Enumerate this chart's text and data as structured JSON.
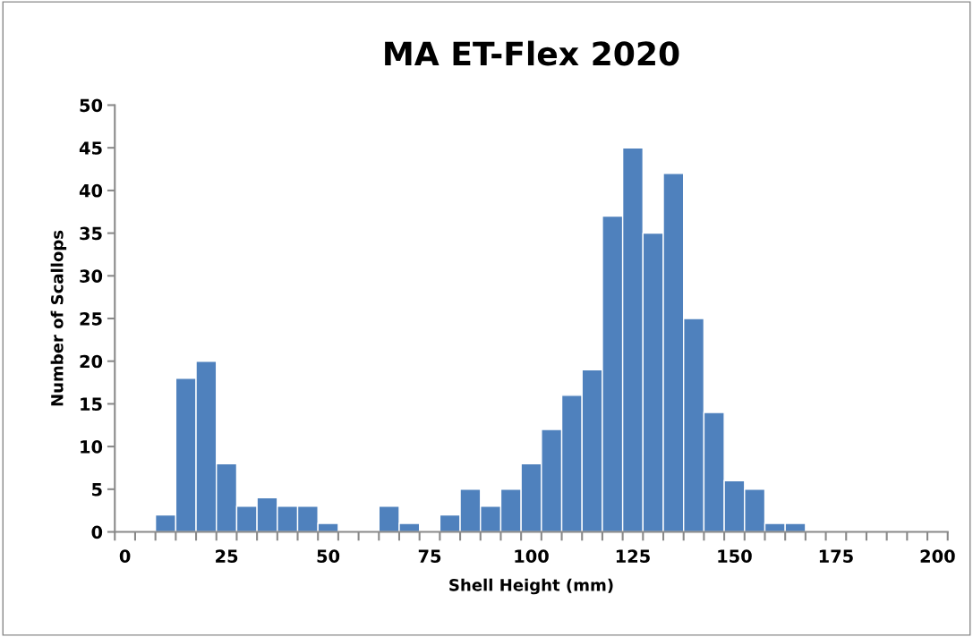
{
  "chart_data": {
    "type": "bar",
    "title": "MA ET-Flex 2020",
    "xlabel": "Shell Height (mm)",
    "ylabel": "Number of Scallops",
    "categories": [
      "0",
      null,
      null,
      null,
      null,
      "25",
      null,
      null,
      null,
      null,
      "50",
      null,
      null,
      null,
      null,
      "75",
      null,
      null,
      null,
      null,
      "100",
      null,
      null,
      null,
      null,
      "125",
      null,
      null,
      null,
      null,
      "150",
      null,
      null,
      null,
      null,
      "175",
      null,
      null,
      null,
      null,
      "200"
    ],
    "values": [
      0,
      0,
      2,
      18,
      20,
      8,
      3,
      4,
      3,
      3,
      1,
      0,
      0,
      3,
      1,
      0,
      2,
      5,
      3,
      5,
      8,
      12,
      16,
      19,
      37,
      45,
      35,
      42,
      25,
      14,
      6,
      5,
      1,
      1,
      0,
      0,
      0,
      0,
      0,
      0,
      0
    ],
    "color": "#4f81bd",
    "ylim": [
      0,
      50
    ],
    "yticks": [
      0,
      5,
      10,
      15,
      20,
      25,
      30,
      35,
      40,
      45,
      50
    ],
    "grid": false,
    "legend": false
  }
}
